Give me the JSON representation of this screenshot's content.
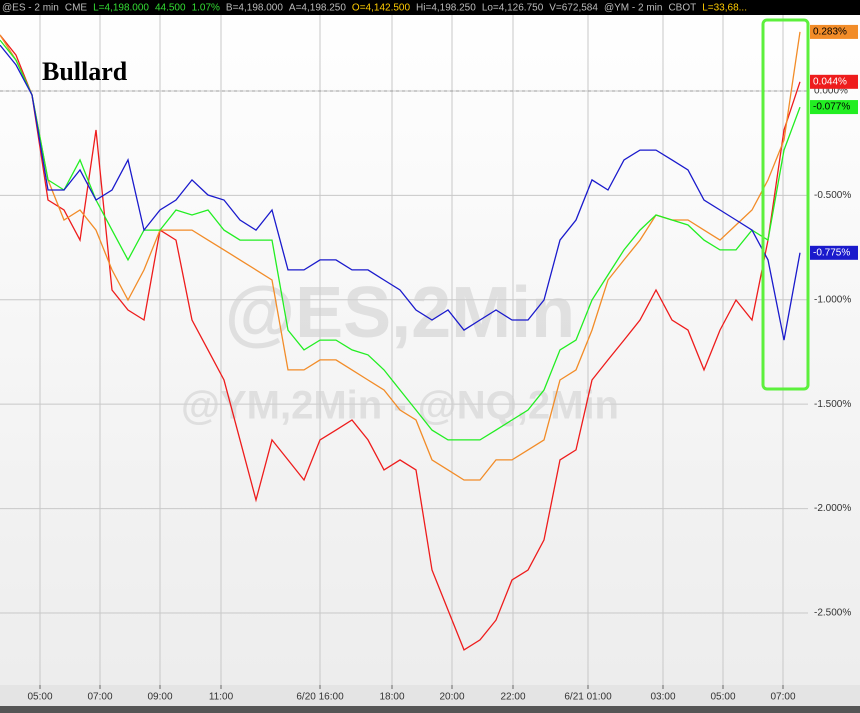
{
  "chart_data": {
    "type": "line",
    "header": [
      {
        "text": "@ES - 2 min",
        "color": "#bbbbbb"
      },
      {
        "text": "CME",
        "color": "#bbbbbb"
      },
      {
        "text": "L=4,198.000",
        "color": "#33dd33"
      },
      {
        "text": "44.500",
        "color": "#33dd33"
      },
      {
        "text": "1.07%",
        "color": "#33dd33"
      },
      {
        "text": "B=4,198.000",
        "color": "#bbbbbb"
      },
      {
        "text": "A=4,198.250",
        "color": "#bbbbbb"
      },
      {
        "text": "O=4,142.500",
        "color": "#ffcc00"
      },
      {
        "text": "Hi=4,198.250",
        "color": "#bbbbbb"
      },
      {
        "text": "Lo=4,126.750",
        "color": "#bbbbbb"
      },
      {
        "text": "V=672,584",
        "color": "#bbbbbb"
      },
      {
        "text": "@YM - 2 min",
        "color": "#bbbbbb"
      },
      {
        "text": "CBOT",
        "color": "#bbbbbb"
      },
      {
        "text": "L=33,68...",
        "color": "#ffcc00"
      }
    ],
    "annotation": "Bullard",
    "watermarks": [
      "@ES,2Min",
      "@YM,2Min - @NQ,2Min"
    ],
    "x": [
      0,
      16,
      32,
      48,
      64,
      80,
      96,
      112,
      128,
      144,
      160,
      176,
      192,
      208,
      224,
      240,
      256,
      272,
      288,
      304,
      320,
      336,
      352,
      368,
      384,
      400,
      416,
      432,
      448,
      464,
      480,
      496,
      512,
      528,
      544,
      560,
      576,
      592,
      608,
      624,
      640,
      656,
      672,
      688,
      704,
      720,
      736,
      752,
      768,
      784,
      800
    ],
    "xlim": [
      0,
      808
    ],
    "xticks": [
      {
        "value": 40,
        "label": "05:00"
      },
      {
        "value": 100,
        "label": "07:00"
      },
      {
        "value": 160,
        "label": "09:00"
      },
      {
        "value": 221,
        "label": "11:00"
      },
      {
        "value": 320,
        "label": "6/20 16:00"
      },
      {
        "value": 392,
        "label": "18:00"
      },
      {
        "value": 452,
        "label": "20:00"
      },
      {
        "value": 513,
        "label": "22:00"
      },
      {
        "value": 588,
        "label": "6/21 01:00"
      },
      {
        "value": 663,
        "label": "03:00"
      },
      {
        "value": 723,
        "label": "05:00"
      },
      {
        "value": 783,
        "label": "07:00"
      }
    ],
    "ylim": [
      -2.845,
      0.364
    ],
    "yticks": [
      {
        "value": 0,
        "label": "0.000%"
      },
      {
        "value": -0.5,
        "label": "-0.500%"
      },
      {
        "value": -1,
        "label": "-1.000%"
      },
      {
        "value": -1.5,
        "label": "-1.500%"
      },
      {
        "value": -2,
        "label": "-2.000%"
      },
      {
        "value": -2.5,
        "label": "-2.500%"
      }
    ],
    "grid": true,
    "series": [
      {
        "color": "#ee1c1c",
        "values": [
          0.268,
          0.172,
          -0.019,
          -0.522,
          -0.57,
          -0.714,
          -0.187,
          -0.953,
          -1.049,
          -1.097,
          -0.666,
          -0.714,
          -1.097,
          -1.24,
          -1.384,
          -1.671,
          -1.959,
          -1.671,
          -1.767,
          -1.863,
          -1.671,
          -1.624,
          -1.576,
          -1.671,
          -1.815,
          -1.767,
          -1.815,
          -2.294,
          -2.486,
          -2.677,
          -2.629,
          -2.534,
          -2.342,
          -2.294,
          -2.15,
          -1.767,
          -1.719,
          -1.384,
          -1.288,
          -1.193,
          -1.097,
          -0.953,
          -1.097,
          -1.145,
          -1.336,
          -1.145,
          -1.001,
          -1.097,
          -0.714,
          -0.187,
          0.044
        ],
        "value_labels": [
          null,
          null,
          null,
          null,
          null,
          null,
          null,
          null,
          null,
          null,
          null,
          null,
          null,
          null,
          null,
          null,
          null,
          null,
          null,
          null,
          null,
          null,
          null,
          null,
          null,
          null,
          null,
          null,
          null,
          null,
          null,
          null,
          null,
          null,
          null,
          null,
          null,
          null,
          null,
          null,
          null,
          null,
          null,
          null,
          null,
          null,
          null,
          null,
          null,
          null,
          "0.044%"
        ]
      },
      {
        "color": "#f28c28",
        "values": [
          0.268,
          0.148,
          -0.019,
          -0.426,
          -0.618,
          -0.57,
          -0.666,
          -0.857,
          -1.001,
          -0.857,
          -0.666,
          -0.666,
          -0.666,
          -0.714,
          -0.761,
          -0.809,
          -0.857,
          -0.905,
          -1.336,
          -1.336,
          -1.288,
          -1.288,
          -1.336,
          -1.384,
          -1.432,
          -1.528,
          -1.576,
          -1.767,
          -1.815,
          -1.863,
          -1.863,
          -1.767,
          -1.767,
          -1.719,
          -1.671,
          -1.384,
          -1.336,
          -1.145,
          -0.905,
          -0.809,
          -0.714,
          -0.594,
          -0.618,
          -0.618,
          -0.666,
          -0.714,
          -0.642,
          -0.57,
          -0.426,
          -0.235,
          0.283
        ],
        "value_labels": [
          null,
          null,
          null,
          null,
          null,
          null,
          null,
          null,
          null,
          null,
          null,
          null,
          null,
          null,
          null,
          null,
          null,
          null,
          null,
          null,
          null,
          null,
          null,
          null,
          null,
          null,
          null,
          null,
          null,
          null,
          null,
          null,
          null,
          null,
          null,
          null,
          null,
          null,
          null,
          null,
          null,
          null,
          null,
          null,
          null,
          null,
          null,
          null,
          null,
          null,
          "0.283%"
        ]
      },
      {
        "color": "#22ee22",
        "values": [
          0.244,
          0.148,
          -0.019,
          -0.426,
          -0.474,
          -0.33,
          -0.522,
          -0.666,
          -0.809,
          -0.666,
          -0.666,
          -0.57,
          -0.594,
          -0.57,
          -0.666,
          -0.714,
          -0.714,
          -0.714,
          -1.145,
          -1.24,
          -1.193,
          -1.193,
          -1.24,
          -1.264,
          -1.336,
          -1.432,
          -1.528,
          -1.624,
          -1.671,
          -1.671,
          -1.671,
          -1.624,
          -1.576,
          -1.528,
          -1.432,
          -1.24,
          -1.193,
          -1.001,
          -0.881,
          -0.761,
          -0.666,
          -0.594,
          -0.618,
          -0.642,
          -0.714,
          -0.761,
          -0.761,
          -0.666,
          -0.714,
          -0.283,
          -0.077
        ],
        "value_labels": [
          null,
          null,
          null,
          null,
          null,
          null,
          null,
          null,
          null,
          null,
          null,
          null,
          null,
          null,
          null,
          null,
          null,
          null,
          null,
          null,
          null,
          null,
          null,
          null,
          null,
          null,
          null,
          null,
          null,
          null,
          null,
          null,
          null,
          null,
          null,
          null,
          null,
          null,
          null,
          null,
          null,
          null,
          null,
          null,
          null,
          null,
          null,
          null,
          null,
          null,
          "-0.077%"
        ]
      },
      {
        "color": "#1a1acc",
        "values": [
          0.22,
          0.125,
          -0.019,
          -0.474,
          -0.474,
          -0.378,
          -0.522,
          -0.474,
          -0.33,
          -0.666,
          -0.57,
          -0.522,
          -0.426,
          -0.498,
          -0.522,
          -0.618,
          -0.666,
          -0.57,
          -0.857,
          -0.857,
          -0.809,
          -0.809,
          -0.857,
          -0.857,
          -0.905,
          -0.953,
          -1.049,
          -1.097,
          -1.049,
          -1.145,
          -1.097,
          -1.049,
          -1.097,
          -1.097,
          -1.001,
          -0.714,
          -0.618,
          -0.426,
          -0.474,
          -0.33,
          -0.283,
          -0.283,
          -0.33,
          -0.378,
          -0.522,
          -0.57,
          -0.618,
          -0.666,
          -0.809,
          -1.193,
          -0.775
        ],
        "value_labels": [
          null,
          null,
          null,
          null,
          null,
          null,
          null,
          null,
          null,
          null,
          null,
          null,
          null,
          null,
          null,
          null,
          null,
          null,
          null,
          null,
          null,
          null,
          null,
          null,
          null,
          null,
          null,
          null,
          null,
          null,
          null,
          null,
          null,
          null,
          null,
          null,
          null,
          null,
          null,
          null,
          null,
          null,
          null,
          null,
          null,
          null,
          null,
          null,
          null,
          null,
          "-0.775%"
        ]
      }
    ]
  }
}
